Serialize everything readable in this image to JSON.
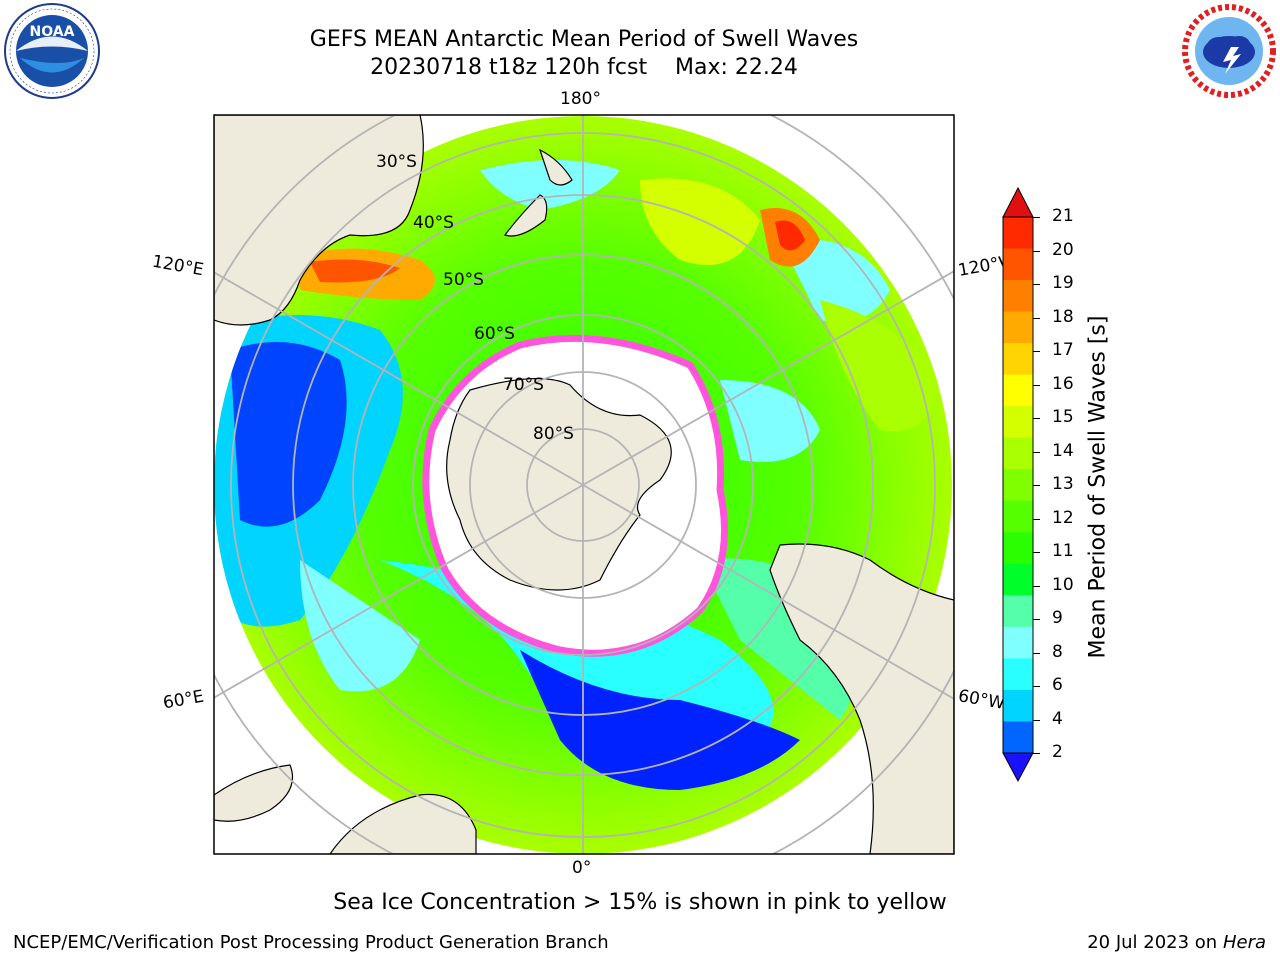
{
  "header": {
    "title_line1": "GEFS MEAN Antarctic Mean Period of Swell Waves",
    "title_line2": "20230718 t18z 120h fcst    Max: 22.24"
  },
  "logos": {
    "left": {
      "text": "NOAA",
      "ring_text": "NATIONAL OCEANIC AND ATMOSPHERIC ADMINISTRATION · U.S. DEPARTMENT OF COMMERCE"
    },
    "right": {
      "ring_text": "NATIONAL WEATHER SERVICE"
    }
  },
  "map": {
    "longitude_labels": {
      "top": "180°",
      "bottom": "0°",
      "left_upper": "120°E",
      "left_lower": "60°E",
      "right_upper": "120°W",
      "right_lower": "60°W"
    },
    "latitude_labels": [
      "30°S",
      "40°S",
      "50°S",
      "60°S",
      "70°S",
      "80°S"
    ],
    "colors": {
      "land": "#efebdc",
      "ice": "#ffffff",
      "ice_edge": "#ff55dd",
      "grid": "#b4b4b4"
    }
  },
  "colorbar": {
    "title": "Mean Period of Swell Waves [s]",
    "ticks": [
      "21",
      "20",
      "19",
      "18",
      "17",
      "16",
      "15",
      "14",
      "13",
      "12",
      "11",
      "10",
      "9",
      "8",
      "6",
      "4",
      "2"
    ],
    "colors_top_to_bottom": [
      "#ff2a00",
      "#ff5500",
      "#ff7f00",
      "#ffaa00",
      "#ffd400",
      "#ffff00",
      "#d4ff00",
      "#aaff00",
      "#7fff00",
      "#55ff00",
      "#2aff00",
      "#00ff2a",
      "#55ffaa",
      "#7fffff",
      "#2affff",
      "#00d4ff",
      "#0066ff"
    ],
    "extend_top": "#e01010",
    "extend_bottom": "#1a12ff"
  },
  "caption": "Sea Ice Concentration > 15% is shown in pink to yellow",
  "footer": {
    "left": "NCEP/EMC/Verification Post Processing Product Generation Branch",
    "right_prefix": "20 Jul 2023 on ",
    "right_host": "Hera"
  }
}
